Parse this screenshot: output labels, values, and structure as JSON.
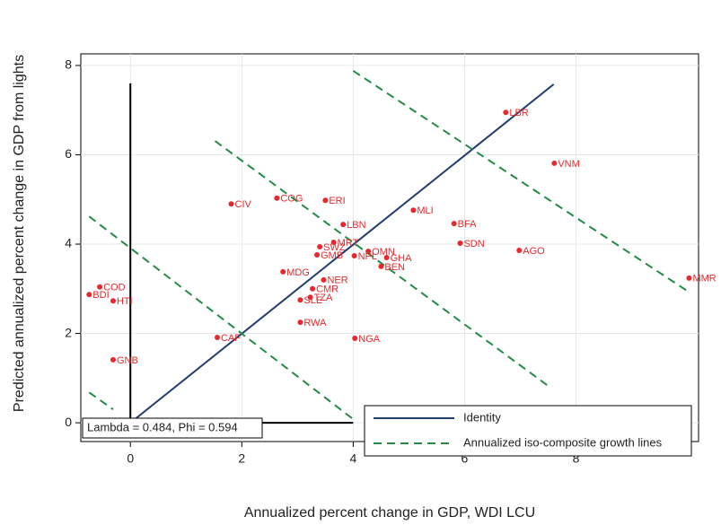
{
  "chart_data": {
    "type": "scatter",
    "x_label": "Annualized percent change in GDP, WDI LCU",
    "y_label": "Predicted annualized percent change in GDP from lights",
    "annotation": "Lambda = 0.484, Phi = 0.594",
    "xlim": [
      -0.89,
      10.2
    ],
    "ylim": [
      -0.42,
      8.26
    ],
    "xticks": [
      0,
      2,
      4,
      6,
      8
    ],
    "yticks": [
      0,
      2,
      4,
      6,
      8
    ],
    "grid": true,
    "legend": "lower right",
    "point_color": "#e8282c",
    "labels": [
      "LBR",
      "VNM",
      "CIV",
      "COG",
      "ERI",
      "MLI",
      "BFA",
      "LBN",
      "SDN",
      "AGO",
      "MRT",
      "SWZ",
      "OMN",
      "GMB",
      "NPL",
      "GHA",
      "BEN",
      "MDG",
      "NER",
      "CMR",
      "SLE",
      "TZA",
      "RWA",
      "NGA",
      "CAF",
      "GNB",
      "COD",
      "BDI",
      "HTI",
      "MMR"
    ],
    "x": [
      6.74,
      7.61,
      1.81,
      2.63,
      3.5,
      5.08,
      5.81,
      3.82,
      5.92,
      6.98,
      3.65,
      3.4,
      4.27,
      3.35,
      4.02,
      4.6,
      4.5,
      2.74,
      3.47,
      3.27,
      3.05,
      3.23,
      3.05,
      4.03,
      1.56,
      -0.31,
      -0.55,
      -0.74,
      -0.31,
      10.03
    ],
    "y": [
      6.95,
      5.81,
      4.9,
      5.03,
      4.98,
      4.76,
      4.46,
      4.44,
      4.02,
      3.86,
      4.04,
      3.94,
      3.84,
      3.76,
      3.74,
      3.7,
      3.5,
      3.38,
      3.2,
      3.0,
      2.75,
      2.81,
      2.25,
      1.89,
      1.91,
      1.41,
      3.04,
      2.87,
      2.73,
      3.24
    ],
    "reference_lines": [
      {
        "x": [
          0,
          0
        ],
        "y": [
          0,
          7.6
        ]
      },
      {
        "x": [
          -0.74,
          4.0
        ],
        "y": [
          0,
          0
        ]
      }
    ],
    "series": [
      {
        "name": "Identity",
        "color": "#1f3c6e",
        "style": "solid",
        "segments": [
          {
            "x": [
              0,
              7.6
            ],
            "y": [
              0,
              7.58
            ]
          }
        ]
      },
      {
        "name": "Annualized iso-composite growth lines",
        "color": "#238b45",
        "style": "dashed",
        "segments": [
          {
            "x": [
              -0.74,
              -0.31
            ],
            "y": [
              0.68,
              0.3
            ]
          },
          {
            "x": [
              -0.74,
              3.98
            ],
            "y": [
              4.62,
              0.1
            ]
          },
          {
            "x": [
              1.52,
              7.55
            ],
            "y": [
              6.31,
              0.78
            ]
          },
          {
            "x": [
              4.0,
              10.0
            ],
            "y": [
              7.88,
              2.95
            ]
          }
        ]
      }
    ]
  }
}
